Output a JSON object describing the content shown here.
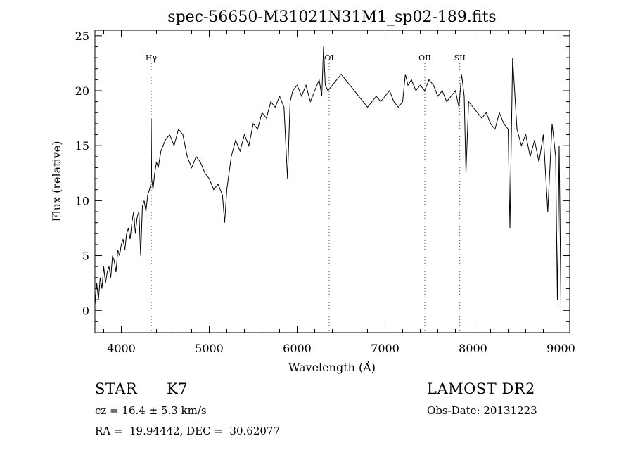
{
  "chart_data": {
    "type": "line",
    "title": "spec-56650-M31021N31M1_sp02-189.fits",
    "xlabel": "Wavelength (Å)",
    "ylabel": "Flux (relative)",
    "xlim": [
      3700,
      9100
    ],
    "ylim": [
      -2,
      25.5
    ],
    "x_ticks": [
      4000,
      5000,
      6000,
      7000,
      8000,
      9000
    ],
    "y_ticks": [
      0,
      5,
      10,
      15,
      20,
      25
    ],
    "grid": false,
    "line_markers": [
      {
        "label": "Hγ",
        "x": 4340
      },
      {
        "label": "OI",
        "x": 6364
      },
      {
        "label": "OII",
        "x": 7452
      },
      {
        "label": "SII",
        "x": 7850
      }
    ],
    "series": [
      {
        "x": [
          3700,
          3720,
          3740,
          3760,
          3780,
          3800,
          3820,
          3840,
          3860,
          3880,
          3900,
          3920,
          3940,
          3960,
          3980,
          4000,
          4020,
          4040,
          4060,
          4080,
          4100,
          4120,
          4140,
          4160,
          4180,
          4200,
          4220,
          4240,
          4260,
          4280,
          4300,
          4320,
          4335,
          4340,
          4345,
          4360,
          4380,
          4400,
          4420,
          4450,
          4500,
          4550,
          4600,
          4650,
          4700,
          4750,
          4800,
          4850,
          4900,
          4950,
          5000,
          5050,
          5100,
          5150,
          5175,
          5200,
          5250,
          5300,
          5350,
          5400,
          5450,
          5500,
          5550,
          5600,
          5650,
          5700,
          5750,
          5800,
          5850,
          5890,
          5920,
          5950,
          6000,
          6050,
          6100,
          6150,
          6200,
          6250,
          6280,
          6300,
          6320,
          6350,
          6400,
          6450,
          6500,
          6550,
          6600,
          6650,
          6700,
          6750,
          6800,
          6850,
          6900,
          6950,
          7000,
          7050,
          7100,
          7150,
          7200,
          7230,
          7260,
          7300,
          7350,
          7400,
          7450,
          7500,
          7550,
          7600,
          7650,
          7700,
          7750,
          7800,
          7840,
          7870,
          7900,
          7920,
          7950,
          8000,
          8050,
          8100,
          8150,
          8200,
          8250,
          8300,
          8350,
          8400,
          8420,
          8450,
          8500,
          8550,
          8600,
          8650,
          8700,
          8750,
          8800,
          8850,
          8900,
          8940,
          8960,
          8980,
          9000
        ],
        "y": [
          0.5,
          2.5,
          1.0,
          3.0,
          2.0,
          4.0,
          2.5,
          3.5,
          4.0,
          3.0,
          5.0,
          4.5,
          3.5,
          5.5,
          5.0,
          6.0,
          6.5,
          5.5,
          7.0,
          7.5,
          6.5,
          8.0,
          9.0,
          7.0,
          8.5,
          9.0,
          5.0,
          9.5,
          10.0,
          9.0,
          10.5,
          11.0,
          11.5,
          17.5,
          12.0,
          11.0,
          12.5,
          13.5,
          13.0,
          14.5,
          15.5,
          16.0,
          15.0,
          16.5,
          16.0,
          14.0,
          13.0,
          14.0,
          13.5,
          12.5,
          12.0,
          11.0,
          11.5,
          10.5,
          8.0,
          11.0,
          14.0,
          15.5,
          14.5,
          16.0,
          15.0,
          17.0,
          16.5,
          18.0,
          17.5,
          19.0,
          18.5,
          19.5,
          18.5,
          12.0,
          19.0,
          20.0,
          20.5,
          19.5,
          20.5,
          19.0,
          20.0,
          21.0,
          19.5,
          24.0,
          20.5,
          20.0,
          20.5,
          21.0,
          21.5,
          21.0,
          20.5,
          20.0,
          19.5,
          19.0,
          18.5,
          19.0,
          19.5,
          19.0,
          19.5,
          20.0,
          19.0,
          18.5,
          19.0,
          21.5,
          20.5,
          21.0,
          20.0,
          20.5,
          20.0,
          21.0,
          20.5,
          19.5,
          20.0,
          19.0,
          19.5,
          20.0,
          18.5,
          21.5,
          19.5,
          12.5,
          19.0,
          18.5,
          18.0,
          17.5,
          18.0,
          17.0,
          16.5,
          18.0,
          17.0,
          16.5,
          7.5,
          23.0,
          16.5,
          15.0,
          16.0,
          14.0,
          15.5,
          13.5,
          16.0,
          9.0,
          17.0,
          14.0,
          1.0,
          15.0,
          0.5
        ]
      }
    ]
  },
  "info": {
    "object_class": "STAR",
    "subclass": "K7",
    "redshift": "cz = 16.4 ± 5.3 km/s",
    "coords": "RA =  19.94442, DEC =  30.62077",
    "survey": "LAMOST DR2",
    "obs_date": "Obs-Date: 20131223"
  }
}
